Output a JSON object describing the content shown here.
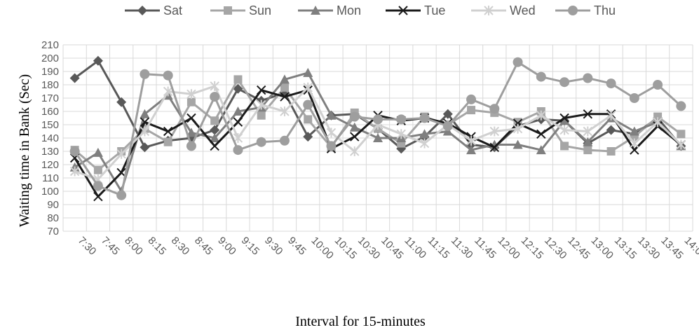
{
  "chart_data": {
    "type": "line",
    "title": "",
    "xlabel": "Interval for 15-minutes",
    "ylabel": "Waiting time in Bank (Sec)",
    "ylim": [
      70,
      210
    ],
    "ytick_step": 10,
    "grid": true,
    "legend_position": "top",
    "categories": [
      "7:30",
      "7:45",
      "8:00",
      "8:15",
      "8:30",
      "8:45",
      "9:00",
      "9:15",
      "9:30",
      "9:45",
      "10:00",
      "10:15",
      "10:30",
      "10:45",
      "11:00",
      "11:15",
      "11:30",
      "11:45",
      "12:00",
      "12:15",
      "12:30",
      "12:45",
      "13:00",
      "13:15",
      "13:30",
      "13:45",
      "14:00"
    ],
    "series": [
      {
        "name": "Sat",
        "marker": "diamond",
        "color": "#595959",
        "values": [
          185,
          198,
          167,
          133,
          138,
          140,
          146,
          177,
          168,
          174,
          141,
          157,
          158,
          147,
          132,
          141,
          158,
          135,
          133,
          149,
          154,
          153,
          136,
          146,
          143,
          155,
          134
        ]
      },
      {
        "name": "Sun",
        "marker": "square",
        "color": "#a6a6a6",
        "values": [
          131,
          116,
          130,
          147,
          137,
          167,
          153,
          184,
          157,
          178,
          154,
          133,
          159,
          147,
          136,
          156,
          150,
          161,
          159,
          152,
          160,
          134,
          131,
          130,
          141,
          156,
          143
        ]
      },
      {
        "name": "Mon",
        "marker": "triangle",
        "color": "#7f7f7f",
        "values": [
          118,
          129,
          100,
          158,
          172,
          144,
          140,
          160,
          163,
          184,
          189,
          157,
          148,
          140,
          140,
          143,
          145,
          131,
          135,
          135,
          131,
          153,
          137,
          155,
          145,
          152,
          134
        ]
      },
      {
        "name": "Tue",
        "marker": "x",
        "color": "#1a1a1a",
        "values": [
          125,
          96,
          114,
          152,
          145,
          155,
          134,
          152,
          176,
          171,
          176,
          132,
          141,
          157,
          153,
          155,
          151,
          141,
          133,
          151,
          143,
          155,
          158,
          158,
          131,
          149,
          135
        ]
      },
      {
        "name": "Wed",
        "marker": "star",
        "color": "#d0d0d0",
        "values": [
          115,
          109,
          128,
          145,
          175,
          173,
          179,
          140,
          165,
          160,
          178,
          144,
          130,
          150,
          143,
          136,
          150,
          138,
          145,
          147,
          157,
          146,
          145,
          157,
          136,
          152,
          135
        ]
      },
      {
        "name": "Thu",
        "marker": "circle",
        "color": "#9e9e9e",
        "values": [
          130,
          104,
          97,
          188,
          187,
          134,
          171,
          131,
          137,
          138,
          165,
          134,
          156,
          154,
          154,
          155,
          149,
          169,
          162,
          197,
          186,
          182,
          185,
          181,
          170,
          180,
          164
        ]
      }
    ]
  }
}
